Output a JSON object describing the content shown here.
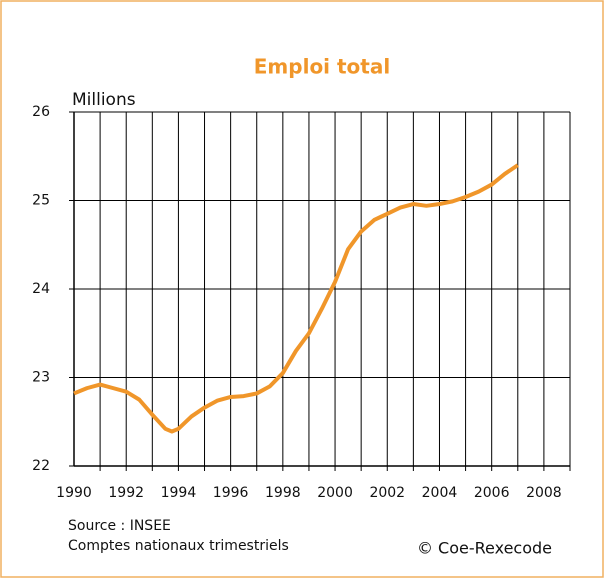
{
  "chart_data": {
    "type": "line",
    "title": "Emploi total",
    "y_label": "Millions",
    "source": "Source : INSEE",
    "source_detail": "Comptes nationaux trimestriels",
    "credit": "© Coe-Rexecode",
    "x": [
      1990,
      1990.5,
      1991,
      1991.5,
      1992,
      1992.5,
      1993,
      1993.5,
      1993.75,
      1994,
      1994.5,
      1995,
      1995.5,
      1996,
      1996.5,
      1997,
      1997.5,
      1998,
      1998.5,
      1999,
      1999.5,
      2000,
      2000.5,
      2001,
      2001.5,
      2002,
      2002.5,
      2003,
      2003.5,
      2004,
      2004.5,
      2005,
      2005.5,
      2006,
      2006.5,
      2007
    ],
    "series": [
      {
        "name": "Emploi total",
        "color": "#f0962a",
        "values": [
          22.82,
          22.88,
          22.92,
          22.88,
          22.84,
          22.75,
          22.58,
          22.42,
          22.39,
          22.42,
          22.56,
          22.66,
          22.74,
          22.78,
          22.79,
          22.82,
          22.9,
          23.05,
          23.3,
          23.5,
          23.78,
          24.08,
          24.45,
          24.65,
          24.78,
          24.85,
          24.92,
          24.96,
          24.94,
          24.96,
          24.99,
          25.04,
          25.1,
          25.18,
          25.3,
          25.4
        ]
      }
    ],
    "xlim": [
      1990,
      2009
    ],
    "xticks": [
      1990,
      1992,
      1994,
      1996,
      1998,
      2000,
      2002,
      2004,
      2006,
      2008
    ],
    "xgrid": [
      1991,
      1992,
      1993,
      1994,
      1995,
      1996,
      1997,
      1998,
      1999,
      2000,
      2001,
      2002,
      2003,
      2004,
      2005,
      2006,
      2007,
      2008,
      2009
    ],
    "ylim": [
      22,
      26
    ],
    "yticks": [
      22,
      23,
      24,
      25,
      26
    ],
    "grid": true
  }
}
